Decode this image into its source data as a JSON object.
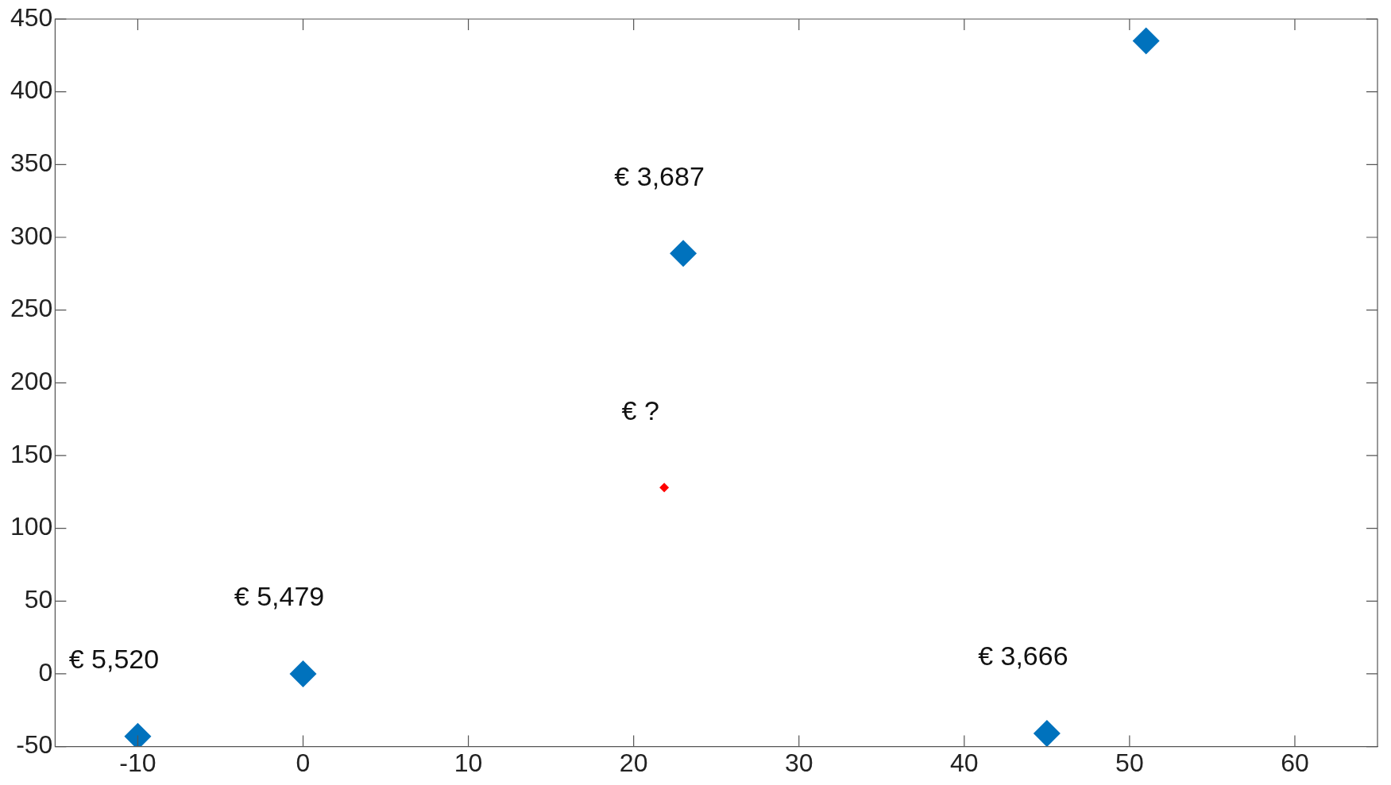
{
  "chart_data": {
    "type": "scatter",
    "marker": "diamond",
    "grid": false,
    "xlim": [
      -15,
      65
    ],
    "xticks": [
      -10,
      0,
      10,
      20,
      30,
      40,
      50,
      60
    ],
    "ylim": [
      -50,
      450
    ],
    "yticks": [
      -50,
      0,
      50,
      100,
      150,
      200,
      250,
      300,
      350,
      400,
      450
    ],
    "series": [
      {
        "color": "#0072bd",
        "x": [
          -10,
          0,
          23,
          45,
          51
        ],
        "values": [
          -43,
          0,
          289,
          -41,
          435
        ]
      },
      {
        "color": "#ff0000",
        "x": [
          21.85
        ],
        "values": [
          128
        ]
      }
    ],
    "annotations": [
      {
        "text": "€ 5,520",
        "x": -10,
        "y": -43
      },
      {
        "text": "€ 5,479",
        "x": 0,
        "y": 0
      },
      {
        "text": "€ 3,687",
        "x": 23,
        "y": 289
      },
      {
        "text": "€ ?",
        "x": 21.85,
        "y": 128
      },
      {
        "text": "€ 3,666",
        "x": 45,
        "y": -41
      }
    ]
  }
}
